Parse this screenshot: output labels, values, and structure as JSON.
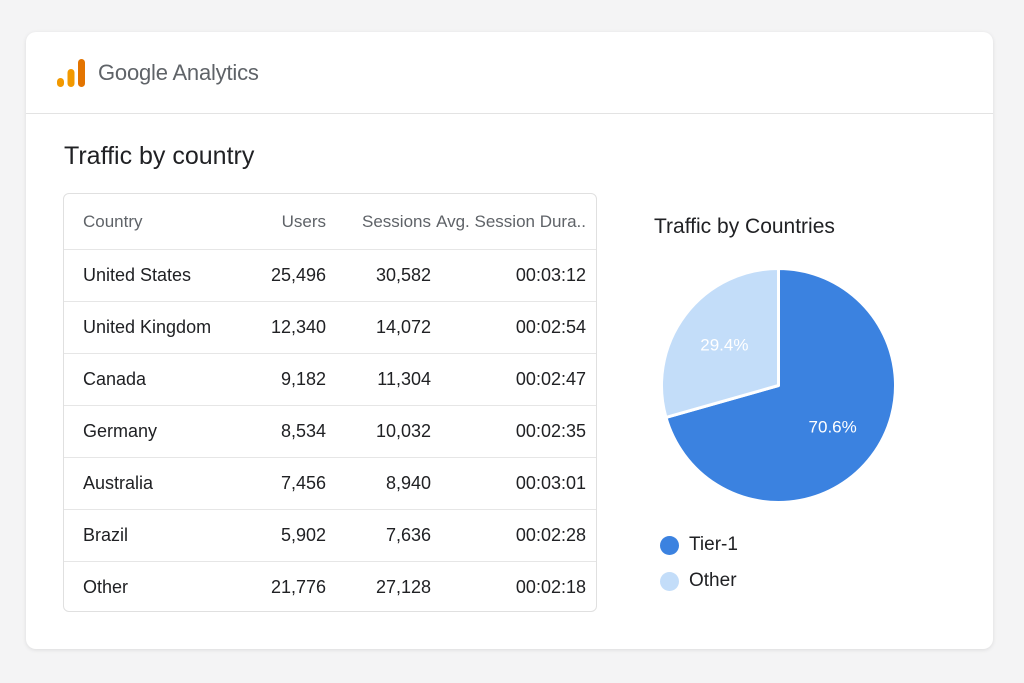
{
  "header": {
    "brand": "Google Analytics",
    "logo_icon": "analytics-bars-icon",
    "logo_color": "#F29900"
  },
  "section": {
    "title": "Traffic by country"
  },
  "table": {
    "columns": [
      "Country",
      "Users",
      "Sessions",
      "Avg. Session Dura.."
    ],
    "rows": [
      {
        "country": "United States",
        "users": "25,496",
        "sessions": "30,582",
        "duration": "00:03:12"
      },
      {
        "country": "United Kingdom",
        "users": "12,340",
        "sessions": "14,072",
        "duration": "00:02:54"
      },
      {
        "country": "Canada",
        "users": "9,182",
        "sessions": "11,304",
        "duration": "00:02:47"
      },
      {
        "country": "Germany",
        "users": "8,534",
        "sessions": "10,032",
        "duration": "00:02:35"
      },
      {
        "country": "Australia",
        "users": "7,456",
        "sessions": "8,940",
        "duration": "00:03:01"
      },
      {
        "country": "Brazil",
        "users": "5,902",
        "sessions": "7,636",
        "duration": "00:02:28"
      },
      {
        "country": "Other",
        "users": "21,776",
        "sessions": "27,128",
        "duration": "00:02:18"
      }
    ]
  },
  "chart_data": {
    "type": "pie",
    "title": "Traffic by Countries",
    "slices": [
      {
        "label": "Tier-1",
        "value": 70.6,
        "display": "70.6%",
        "color": "#3B82E0"
      },
      {
        "label": "Other",
        "value": 29.4,
        "display": "29.4%",
        "color": "#C3DDF9"
      }
    ],
    "legend_position": "bottom"
  }
}
